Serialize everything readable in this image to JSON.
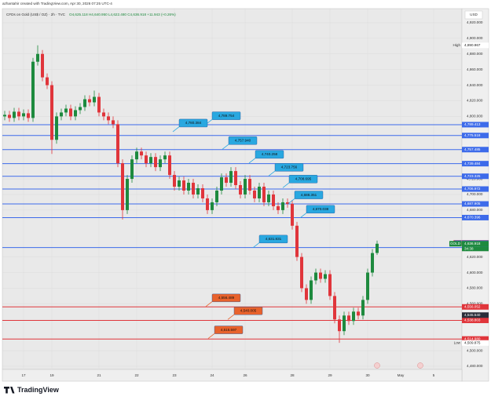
{
  "header": {
    "credit": "azhantahir created with TradingView.com, Apr 30, 2026 07:25 UTC-4",
    "brand": "TradingView"
  },
  "chart_data": {
    "type": "candlestick",
    "symbol": "CFDs on Gold (US$ / OZ) · 2h · TVC",
    "ohlc_text": "O4,625.118 H4,640.950 L4,622.480 C4,636.918 +11.943 (+0.26%)",
    "currency": "USD",
    "categories": [
      null,
      null,
      null,
      null,
      "17",
      null,
      null,
      null,
      null,
      null,
      "19",
      null,
      null,
      null,
      null,
      null,
      null,
      null,
      null,
      null,
      "21",
      null,
      null,
      null,
      null,
      null,
      null,
      null,
      "22",
      null,
      null,
      null,
      null,
      null,
      null,
      null,
      "23",
      null,
      null,
      null,
      null,
      null,
      null,
      null,
      "24",
      null,
      null,
      null,
      null,
      null,
      null,
      "26",
      null,
      null,
      null,
      null,
      null,
      null,
      null,
      null,
      null,
      "28",
      null,
      null,
      null,
      null,
      null,
      null,
      null,
      "29",
      null,
      null,
      null,
      null,
      null,
      null,
      null,
      "30",
      null,
      null,
      null,
      null,
      null,
      null,
      "May",
      null,
      null,
      null,
      null,
      null,
      null,
      "5"
    ],
    "open": [
      4800,
      4802,
      4798,
      4806,
      4800,
      4804,
      4798,
      4870,
      4880,
      4850,
      4840,
      4770,
      4800,
      4805,
      4810,
      4800,
      4808,
      4812,
      4822,
      4818,
      4825,
      4805,
      4800,
      4795,
      4790,
      4740,
      4680,
      4720,
      4745,
      4755,
      4750,
      4740,
      4748,
      4735,
      4745,
      4750,
      4725,
      4710,
      4718,
      4705,
      4715,
      4700,
      4708,
      4695,
      4680,
      4690,
      4705,
      4722,
      4715,
      4730,
      4712,
      4700,
      4720,
      4705,
      4695,
      4710,
      4690,
      4700,
      4685,
      4680,
      4690,
      4688,
      4660,
      4620,
      4580,
      4565,
      4590,
      4600,
      4592,
      4598,
      4570,
      4540,
      4525,
      4545,
      4538,
      4550,
      4545,
      4565,
      4600,
      4625.118,
      null,
      null,
      null,
      null,
      null,
      null,
      null,
      null,
      null,
      null,
      null,
      null
    ],
    "high": [
      4807,
      4807,
      4811,
      4811,
      4809,
      4809,
      4875,
      4891,
      4885,
      4855,
      4845,
      4805,
      4810,
      4815,
      4815,
      4813,
      4817,
      4827,
      4827,
      4833,
      4830,
      4810,
      4805,
      4800,
      4795,
      4745,
      4725,
      4750,
      4760,
      4760,
      4755,
      4753,
      4753,
      4750,
      4755,
      4755,
      4730,
      4723,
      4723,
      4720,
      4720,
      4713,
      4713,
      4700,
      4695,
      4710,
      4727,
      4727,
      4735,
      4735,
      4717,
      4725,
      4725,
      4710,
      4715,
      4715,
      4705,
      4705,
      4690,
      4695,
      4695,
      4693,
      4665,
      4625,
      4585,
      4595,
      4605,
      4605,
      4603,
      4603,
      4575,
      4545,
      4550,
      4550,
      4555,
      4555,
      4570,
      4605,
      4630,
      4640.95,
      null,
      null,
      null,
      null,
      null,
      null,
      null,
      null,
      null,
      null,
      null,
      null
    ],
    "low": [
      4795,
      4793,
      4793,
      4795,
      4795,
      4793,
      4793,
      4865,
      4845,
      4835,
      4752,
      4765,
      4795,
      4800,
      4795,
      4795,
      4803,
      4807,
      4813,
      4813,
      4800,
      4795,
      4790,
      4785,
      4735,
      4668,
      4675,
      4715,
      4740,
      4745,
      4735,
      4735,
      4730,
      4730,
      4740,
      4720,
      4705,
      4705,
      4700,
      4700,
      4695,
      4695,
      4690,
      4675,
      4675,
      4685,
      4700,
      4710,
      4710,
      4707,
      4695,
      4695,
      4700,
      4690,
      4690,
      4685,
      4685,
      4680,
      4675,
      4675,
      4683,
      4655,
      4615,
      4575,
      4560,
      4560,
      4585,
      4587,
      4587,
      4565,
      4535,
      4510,
      4520,
      4533,
      4533,
      4540,
      4540,
      4560,
      4595,
      4622.48,
      null,
      null,
      null,
      null,
      null,
      null,
      null,
      null,
      null,
      null,
      null,
      null
    ],
    "close": [
      4802,
      4798,
      4806,
      4800,
      4804,
      4798,
      4870,
      4880,
      4850,
      4840,
      4770,
      4800,
      4805,
      4810,
      4800,
      4808,
      4812,
      4822,
      4818,
      4825,
      4805,
      4800,
      4795,
      4790,
      4740,
      4680,
      4720,
      4745,
      4755,
      4750,
      4740,
      4748,
      4735,
      4745,
      4750,
      4725,
      4710,
      4718,
      4705,
      4715,
      4700,
      4708,
      4695,
      4680,
      4690,
      4705,
      4722,
      4715,
      4730,
      4712,
      4700,
      4720,
      4705,
      4695,
      4710,
      4690,
      4700,
      4685,
      4680,
      4690,
      4688,
      4660,
      4620,
      4580,
      4565,
      4590,
      4600,
      4592,
      4598,
      4570,
      4540,
      4525,
      4545,
      4538,
      4550,
      4545,
      4565,
      4600,
      4625,
      4636.918,
      null,
      null,
      null,
      null,
      null,
      null,
      null,
      null,
      null,
      null,
      null,
      null
    ],
    "up_color": "#1e8a3e",
    "down_color": "#e0353b",
    "ylim": [
      4476,
      4938
    ],
    "yticks": [
      {
        "value": 4920,
        "label": "4,920.000"
      },
      {
        "value": 4900,
        "label": "4,900.000"
      },
      {
        "value": 4880,
        "label": "4,880.000"
      },
      {
        "value": 4860,
        "label": "4,860.000"
      },
      {
        "value": 4840,
        "label": "4,840.000"
      },
      {
        "value": 4820,
        "label": "4,820.000"
      },
      {
        "value": 4800,
        "label": "4,800.000"
      },
      {
        "value": 4720,
        "label": "4,720.000"
      },
      {
        "value": 4700,
        "label": "4,700.000"
      },
      {
        "value": 4680,
        "label": "4,680.000"
      },
      {
        "value": 4620,
        "label": "4,620.000"
      },
      {
        "value": 4600,
        "label": "4,600.000"
      },
      {
        "value": 4580,
        "label": "4,580.000"
      },
      {
        "value": 4560,
        "label": "4,560.000"
      },
      {
        "value": 4500,
        "label": "4,500.000"
      },
      {
        "value": 4480,
        "label": "4,480.000"
      }
    ],
    "grid": true,
    "hlines": [
      {
        "value": 4789.413,
        "label": "4,789.413",
        "color": "#3d6bea"
      },
      {
        "value": 4775.518,
        "label": "4,775.518",
        "color": "#3d6bea"
      },
      {
        "value": 4757.485,
        "label": "4,757.485",
        "color": "#3d6bea"
      },
      {
        "value": 4739.484,
        "label": "4,739.484",
        "color": "#3d6bea"
      },
      {
        "value": 4723.325,
        "label": "4,723.325",
        "color": "#3d6bea"
      },
      {
        "value": 4706.972,
        "label": "4,706.972",
        "color": "#3d6bea"
      },
      {
        "value": 4687.905,
        "label": "4,687.905",
        "color": "#3d6bea"
      },
      {
        "value": 4670.396,
        "label": "4,670.396",
        "color": "#3d6bea"
      },
      {
        "value": 4632.079,
        "label": "4,632.079",
        "color": "#3d6bea"
      },
      {
        "value": 4556.052,
        "label": "4,556.052",
        "color": "#e0353b"
      },
      {
        "value": 4538.803,
        "label": "4,538.803",
        "color": "#e0353b"
      },
      {
        "value": 4514.98,
        "label": "4,514.980",
        "color": "#e0353b"
      }
    ],
    "callouts": [
      {
        "value": 4789.754,
        "label": "4,789.754",
        "color": "#29a8e0"
      },
      {
        "value": 4780.384,
        "label": "4,780.384",
        "color": "#29a8e0"
      },
      {
        "value": 4757.94,
        "label": "4,757.940",
        "color": "#29a8e0"
      },
      {
        "value": 4740.258,
        "label": "4,740.258",
        "color": "#29a8e0"
      },
      {
        "value": 4723.756,
        "label": "4,723.756",
        "color": "#29a8e0"
      },
      {
        "value": 4708.695,
        "label": "4,708.695",
        "color": "#29a8e0"
      },
      {
        "value": 4688.351,
        "label": "4,688.351",
        "color": "#29a8e0"
      },
      {
        "value": 4670.038,
        "label": "4,670.038",
        "color": "#29a8e0"
      },
      {
        "value": 4631.831,
        "label": "4,631.831",
        "color": "#29a8e0"
      },
      {
        "value": 4556.489,
        "label": "4,556.489",
        "color": "#e8622c"
      },
      {
        "value": 4540.005,
        "label": "4,540.005",
        "color": "#e8622c"
      },
      {
        "value": 4515.597,
        "label": "4,515.597",
        "color": "#e8622c"
      }
    ],
    "tags": [
      {
        "name": "High",
        "value": 4890.967,
        "label": "4,890.967",
        "color": "#ffffff",
        "text_color": "#222222"
      },
      {
        "name": "Ask",
        "value": 4638.025,
        "label": "4,638.025",
        "color": "#e0353b",
        "text_color": "#ffffff"
      },
      {
        "name": "Bid",
        "value": 4637.65,
        "label": "4,637.650",
        "color": "#3d6bea",
        "text_color": "#ffffff"
      },
      {
        "name": "GOLD",
        "value": 4636.918,
        "label": "4,636.918",
        "color": "#1e8a3e",
        "text_color": "#ffffff",
        "timer": "34:38"
      },
      {
        "name": null,
        "value": 4545.54,
        "label": "4,545.540",
        "color": "#2a2e39",
        "text_color": "#ffffff"
      },
      {
        "name": "Low",
        "value": 4509.875,
        "label": "4,509.875",
        "color": "#ffffff",
        "text_color": "#222222"
      }
    ]
  }
}
